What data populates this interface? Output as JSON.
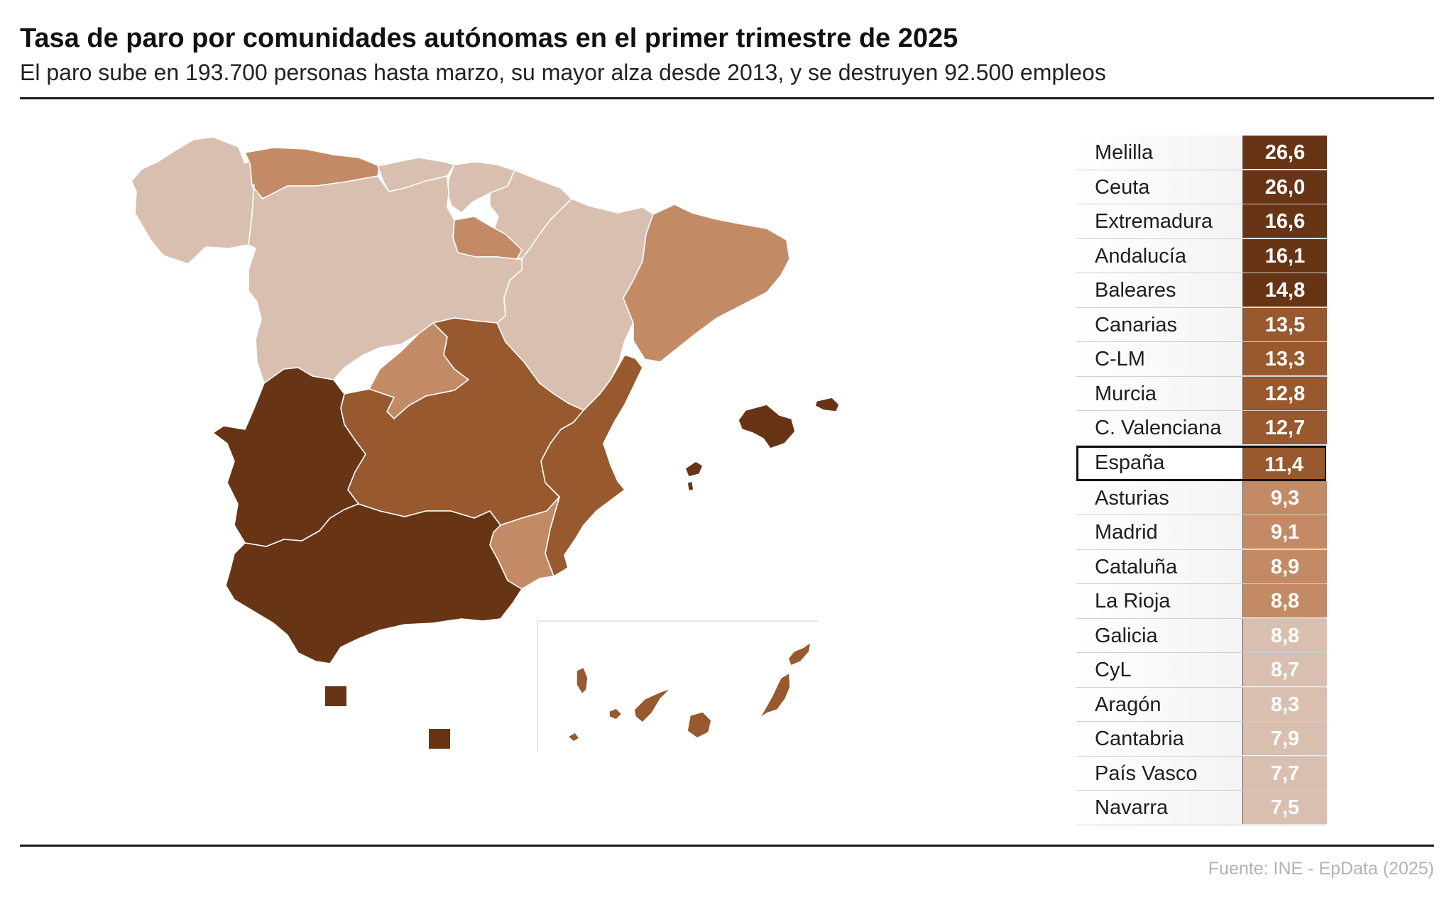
{
  "title": "Tasa de paro por comunidades autónomas en el primer trimestre de 2025",
  "subtitle": "El paro sube en 193.700 personas hasta marzo, su mayor alza desde 2013, y se destruyen 92.500 empleos",
  "source": "Fuente: INE - EpData (2025)",
  "colors": {
    "darkest": "#673516",
    "dark": "#97592d",
    "medium": "#c38a66",
    "light": "#d8bfb0",
    "highlight_border": "#111111"
  },
  "table": {
    "rows": [
      {
        "name": "Melilla",
        "value": "26,6",
        "color": "#673516"
      },
      {
        "name": "Ceuta",
        "value": "26,0",
        "color": "#673516"
      },
      {
        "name": "Extremadura",
        "value": "16,6",
        "color": "#673516"
      },
      {
        "name": "Andalucía",
        "value": "16,1",
        "color": "#673516"
      },
      {
        "name": "Baleares",
        "value": "14,8",
        "color": "#673516"
      },
      {
        "name": "Canarias",
        "value": "13,5",
        "color": "#97592d"
      },
      {
        "name": "C-LM",
        "value": "13,3",
        "color": "#97592d"
      },
      {
        "name": "Murcia",
        "value": "12,8",
        "color": "#97592d"
      },
      {
        "name": "C. Valenciana",
        "value": "12,7",
        "color": "#97592d"
      },
      {
        "name": "España",
        "value": "11,4",
        "color": "#97592d",
        "highlight": true
      },
      {
        "name": "Asturias",
        "value": "9,3",
        "color": "#c38a66"
      },
      {
        "name": "Madrid",
        "value": "9,1",
        "color": "#c38a66"
      },
      {
        "name": "Cataluña",
        "value": "8,9",
        "color": "#c38a66"
      },
      {
        "name": "La Rioja",
        "value": "8,8",
        "color": "#c38a66"
      },
      {
        "name": "Galicia",
        "value": "8,8",
        "color": "#d8bfb0"
      },
      {
        "name": "CyL",
        "value": "8,7",
        "color": "#d8bfb0"
      },
      {
        "name": "Aragón",
        "value": "8,3",
        "color": "#d8bfb0"
      },
      {
        "name": "Cantabria",
        "value": "7,9",
        "color": "#d8bfb0"
      },
      {
        "name": "País Vasco",
        "value": "7,7",
        "color": "#d8bfb0"
      },
      {
        "name": "Navarra",
        "value": "7,5",
        "color": "#d8bfb0"
      }
    ]
  }
}
